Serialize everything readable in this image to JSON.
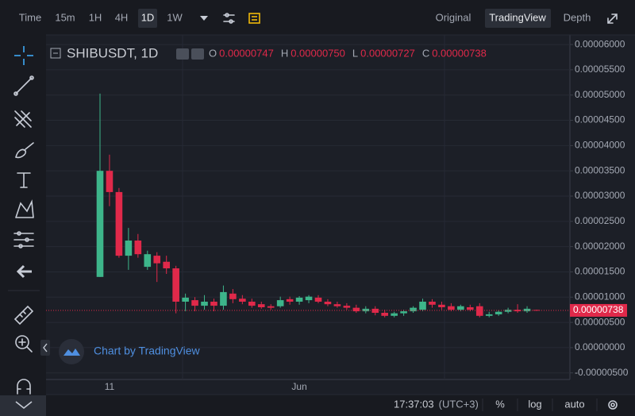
{
  "toolbar": {
    "intervals": [
      "Time",
      "15m",
      "1H",
      "4H",
      "1D",
      "1W"
    ],
    "active_interval": 4,
    "views": [
      "Original",
      "TradingView",
      "Depth"
    ],
    "active_view": 1
  },
  "chart_data": {
    "type": "candlestick",
    "title": "SHIBUSDT, 1D",
    "legend": [
      {
        "key": "O",
        "text": "0.00000747"
      },
      {
        "key": "H",
        "text": "0.00000750"
      },
      {
        "key": "L",
        "text": "0.00000727"
      },
      {
        "key": "C",
        "text": "0.00000738"
      }
    ],
    "categories": [
      null,
      "11",
      null,
      null,
      null,
      null,
      null,
      null,
      null,
      null,
      null,
      null,
      null,
      null,
      null,
      null,
      null,
      null,
      null,
      null,
      null,
      "Jun",
      null,
      null,
      null,
      null,
      null,
      null,
      null,
      null,
      null,
      null,
      null,
      null,
      null,
      null,
      null,
      null,
      null,
      null,
      null,
      null,
      null,
      null,
      null,
      null,
      null
    ],
    "open": [
      1.4e-05,
      3.5e-05,
      3.08e-05,
      1.82e-05,
      2.12e-05,
      1.6e-05,
      1.82e-05,
      1.7e-05,
      1.57e-05,
      9.1e-06,
      9.4e-06,
      8.3e-06,
      9.1e-06,
      8.3e-06,
      1.07e-05,
      9.7e-06,
      9.1e-06,
      8.6e-06,
      8.2e-06,
      8.2e-06,
      9.6e-06,
      9.1e-06,
      9.4e-06,
      9.9e-06,
      9.1e-06,
      8.6e-06,
      8.3e-06,
      7.9e-06,
      7.2e-06,
      7.7e-06,
      6.9e-06,
      6.3e-06,
      6.8e-06,
      7.2e-06,
      7.5e-06,
      9.1e-06,
      8.5e-06,
      8.2e-06,
      7.5e-06,
      8e-06,
      8.2e-06,
      6.3e-06,
      6.6e-06,
      7.1e-06,
      7.5e-06,
      7.2e-06,
      7.47e-06
    ],
    "high": [
      5.03e-05,
      3.82e-05,
      3.16e-05,
      2.37e-05,
      2.25e-05,
      1.92e-05,
      1.89e-05,
      1.82e-05,
      1.62e-05,
      1.07e-05,
      1e-05,
      1.04e-05,
      9.7e-06,
      1.23e-05,
      1.16e-05,
      1.04e-05,
      9.7e-06,
      9.1e-06,
      8.6e-06,
      1.01e-05,
      1.01e-05,
      1.02e-05,
      1.04e-05,
      1.04e-05,
      9.6e-06,
      9.1e-06,
      8.8e-06,
      8.5e-06,
      8.2e-06,
      8.2e-06,
      7.5e-06,
      7.1e-06,
      7.5e-06,
      8.2e-06,
      9.7e-06,
      9.6e-06,
      9.1e-06,
      8.8e-06,
      8.5e-06,
      8.5e-06,
      8.8e-06,
      7.1e-06,
      7.4e-06,
      7.9e-06,
      8.6e-06,
      8.2e-06,
      7.5e-06
    ],
    "low": [
      1.4e-05,
      2.8e-05,
      1.78e-05,
      1.54e-05,
      1.78e-05,
      1.54e-05,
      1.3e-05,
      1.46e-05,
      6.8e-06,
      7.2e-06,
      7.2e-06,
      7.5e-06,
      7.2e-06,
      7.5e-06,
      8.8e-06,
      8.6e-06,
      7.9e-06,
      7.7e-06,
      7.5e-06,
      7.9e-06,
      8.5e-06,
      8.5e-06,
      8.8e-06,
      8.8e-06,
      8.2e-06,
      7.9e-06,
      7.5e-06,
      6.9e-06,
      6.8e-06,
      6.4e-06,
      6e-06,
      6e-06,
      6.3e-06,
      6.9e-06,
      7.2e-06,
      7.9e-06,
      7.5e-06,
      7.2e-06,
      7.2e-06,
      7.2e-06,
      6e-06,
      6e-06,
      6.3e-06,
      6.8e-06,
      6.9e-06,
      6.9e-06,
      7.27e-06
    ],
    "close": [
      3.5e-05,
      3.08e-05,
      1.82e-05,
      2.12e-05,
      1.85e-05,
      1.85e-05,
      1.67e-05,
      1.57e-05,
      9.1e-06,
      9.9e-06,
      8.3e-06,
      9.1e-06,
      8.3e-06,
      1.1e-05,
      9.6e-06,
      9.1e-06,
      8.3e-06,
      8e-06,
      7.9e-06,
      9.4e-06,
      9.1e-06,
      9.9e-06,
      1.01e-05,
      9.1e-06,
      8.6e-06,
      8.2e-06,
      7.9e-06,
      7.2e-06,
      7.7e-06,
      6.9e-06,
      6.3e-06,
      6.8e-06,
      7.2e-06,
      7.9e-06,
      9.1e-06,
      8.5e-06,
      8e-06,
      7.5e-06,
      8.2e-06,
      7.5e-06,
      6.3e-06,
      6.6e-06,
      7.1e-06,
      7.5e-06,
      7.2e-06,
      7.7e-06,
      7.38e-06
    ],
    "up_color": "#3db58a",
    "down_color": "#e0294a",
    "ylim": [
      -6.3e-06,
      6.19e-05
    ],
    "yticks": [
      {
        "value": 6e-05,
        "label": "0.00006000"
      },
      {
        "value": 5.5e-05,
        "label": "0.00005500"
      },
      {
        "value": 5e-05,
        "label": "0.00005000"
      },
      {
        "value": 4.5e-05,
        "label": "0.00004500"
      },
      {
        "value": 4e-05,
        "label": "0.00004000"
      },
      {
        "value": 3.5e-05,
        "label": "0.00003500"
      },
      {
        "value": 3e-05,
        "label": "0.00003000"
      },
      {
        "value": 2.5e-05,
        "label": "0.00002500"
      },
      {
        "value": 2e-05,
        "label": "0.00002000"
      },
      {
        "value": 1.5e-05,
        "label": "0.00001500"
      },
      {
        "value": 1e-05,
        "label": "0.00001000"
      },
      {
        "value": 5e-06,
        "label": "0.00000500"
      },
      {
        "value": 0,
        "label": "0.00000000"
      },
      {
        "value": -5e-06,
        "label": "-0.00000500"
      }
    ],
    "grid": true,
    "last_price_label": "0.00000738",
    "watermark": "Chart by TradingView"
  },
  "status_bar": {
    "time": "17:37:03",
    "timezone": "(UTC+3)",
    "options": [
      "%",
      "log",
      "auto"
    ]
  }
}
